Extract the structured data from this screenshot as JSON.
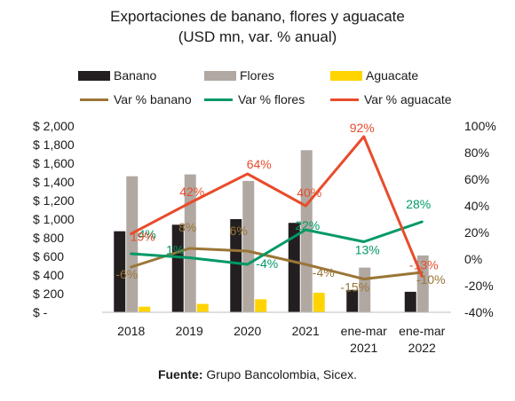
{
  "title_line1": "Exportaciones de banano, flores y aguacate",
  "title_line2": "(USD mn, var. % anual)",
  "legend": {
    "banano": "Banano",
    "flores": "Flores",
    "aguacate": "Aguacate",
    "var_banano": "Var % banano",
    "var_flores": "Var % flores",
    "var_aguacate": "Var % aguacate"
  },
  "source_label": "Fuente:",
  "source_text": " Grupo Bancolombia, Sicex.",
  "colors": {
    "banano": "#231f20",
    "flores": "#b1a8a2",
    "aguacate": "#ffd400",
    "var_banano": "#9a7636",
    "var_flores": "#009966",
    "var_aguacate": "#e84c2b"
  },
  "chart_data": {
    "type": "bar",
    "categories": [
      [
        "2018"
      ],
      [
        "2019"
      ],
      [
        "2020"
      ],
      [
        "2021"
      ],
      [
        "ene-mar",
        "2021"
      ],
      [
        "ene-mar",
        "2022"
      ]
    ],
    "series": [
      {
        "name": "Banano",
        "type": "bar",
        "axis": "left",
        "values": [
          870,
          940,
          1000,
          960,
          240,
          220
        ]
      },
      {
        "name": "Flores",
        "type": "bar",
        "axis": "left",
        "values": [
          1460,
          1480,
          1410,
          1740,
          480,
          610
        ]
      },
      {
        "name": "Aguacate",
        "type": "bar",
        "axis": "left",
        "values": [
          60,
          90,
          140,
          210,
          0,
          0
        ]
      },
      {
        "name": "Var % banano",
        "type": "line",
        "axis": "right",
        "values": [
          -6,
          8,
          6,
          -4,
          -15,
          -10
        ],
        "labels": [
          "-6%",
          "8%",
          "6%",
          "-4%",
          "-15%",
          "-10%"
        ]
      },
      {
        "name": "Var % flores",
        "type": "line",
        "axis": "right",
        "values": [
          4,
          1,
          -4,
          22,
          13,
          28
        ],
        "labels": [
          "4%",
          "1%",
          "-4%",
          "22%",
          "13%",
          "28%"
        ]
      },
      {
        "name": "Var % aguacate",
        "type": "line",
        "axis": "right",
        "values": [
          19,
          42,
          64,
          40,
          92,
          -13
        ],
        "labels": [
          "19%",
          "42%",
          "64%",
          "40%",
          "92%",
          "-13%"
        ]
      }
    ],
    "y_left": {
      "ylim": [
        0,
        2000
      ],
      "ticks": [
        "$ -",
        "$ 200",
        "$ 400",
        "$ 600",
        "$ 800",
        "$ 1,000",
        "$ 1,200",
        "$ 1,400",
        "$ 1,600",
        "$ 1,800",
        "$ 2,000"
      ]
    },
    "y_right": {
      "ylim": [
        -40,
        100
      ],
      "ticks": [
        "-40%",
        "-20%",
        "0%",
        "20%",
        "40%",
        "60%",
        "80%",
        "100%"
      ]
    },
    "legend_position": "top",
    "grid": false
  }
}
